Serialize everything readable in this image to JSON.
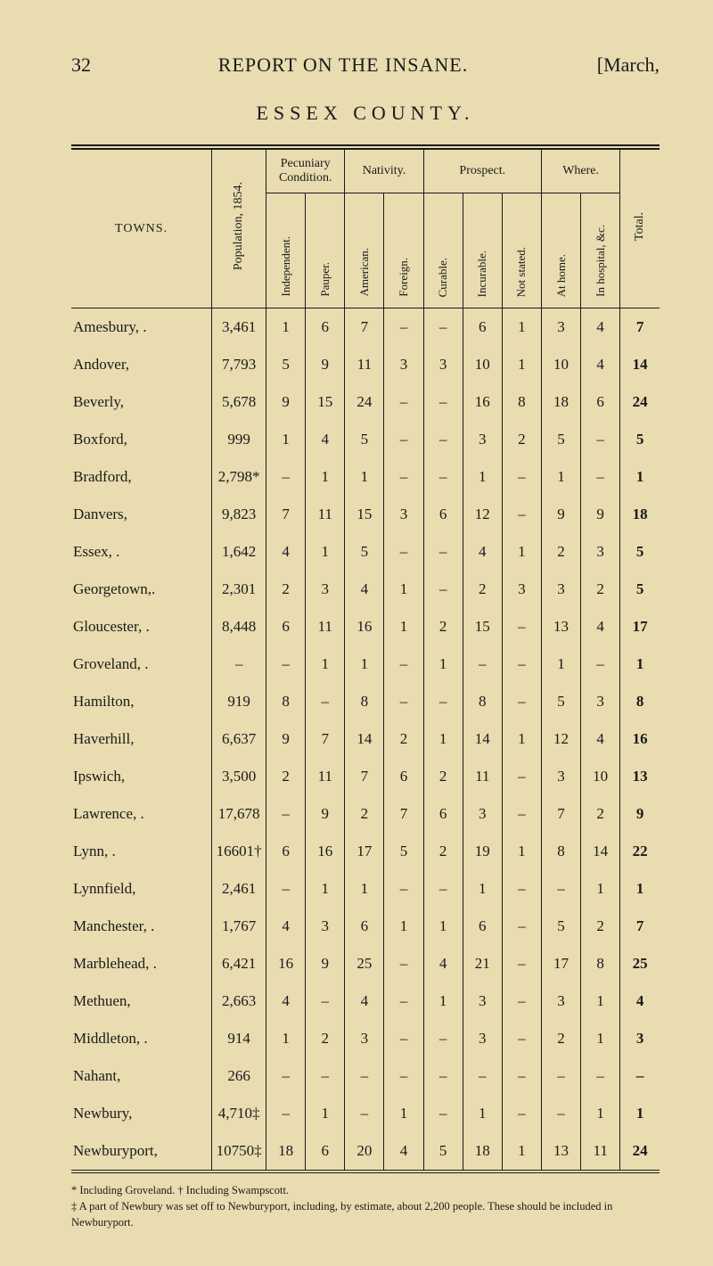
{
  "page_number": "32",
  "running_title": "REPORT ON THE INSANE.",
  "month": "[March,",
  "county_title": "ESSEX COUNTY.",
  "columns": {
    "towns_label": "TOWNS.",
    "population": "Population, 1854.",
    "group_pecuniary": "Pecuniary Condition.",
    "independent": "Independent.",
    "pauper": "Pauper.",
    "group_nativity": "Nativity.",
    "american": "American.",
    "foreign": "Foreign.",
    "group_prospect": "Prospect.",
    "curable": "Curable.",
    "incurable": "Incurable.",
    "not_stated": "Not stated.",
    "group_where": "Where.",
    "at_home": "At home.",
    "in_hospital": "In hospital, &c.",
    "total": "Total."
  },
  "rows": [
    {
      "town": "Amesbury,  .",
      "pop": "3,461",
      "ind": "1",
      "pau": "6",
      "am": "7",
      "for": "–",
      "cur": "–",
      "inc": "6",
      "ns": "1",
      "home": "3",
      "hosp": "4",
      "tot": "7"
    },
    {
      "town": "Andover,",
      "pop": "7,793",
      "ind": "5",
      "pau": "9",
      "am": "11",
      "for": "3",
      "cur": "3",
      "inc": "10",
      "ns": "1",
      "home": "10",
      "hosp": "4",
      "tot": "14"
    },
    {
      "town": "Beverly,",
      "pop": "5,678",
      "ind": "9",
      "pau": "15",
      "am": "24",
      "for": "–",
      "cur": "–",
      "inc": "16",
      "ns": "8",
      "home": "18",
      "hosp": "6",
      "tot": "24"
    },
    {
      "town": "Boxford,",
      "pop": "999",
      "ind": "1",
      "pau": "4",
      "am": "5",
      "for": "–",
      "cur": "–",
      "inc": "3",
      "ns": "2",
      "home": "5",
      "hosp": "–",
      "tot": "5"
    },
    {
      "town": "Bradford,",
      "pop": "2,798*",
      "ind": "–",
      "pau": "1",
      "am": "1",
      "for": "–",
      "cur": "–",
      "inc": "1",
      "ns": "–",
      "home": "1",
      "hosp": "–",
      "tot": "1"
    },
    {
      "town": "Danvers,",
      "pop": "9,823",
      "ind": "7",
      "pau": "11",
      "am": "15",
      "for": "3",
      "cur": "6",
      "inc": "12",
      "ns": "–",
      "home": "9",
      "hosp": "9",
      "tot": "18"
    },
    {
      "town": "Essex, .",
      "pop": "1,642",
      "ind": "4",
      "pau": "1",
      "am": "5",
      "for": "–",
      "cur": "–",
      "inc": "4",
      "ns": "1",
      "home": "2",
      "hosp": "3",
      "tot": "5"
    },
    {
      "town": "Georgetown,.",
      "pop": "2,301",
      "ind": "2",
      "pau": "3",
      "am": "4",
      "for": "1",
      "cur": "–",
      "inc": "2",
      "ns": "3",
      "home": "3",
      "hosp": "2",
      "tot": "5"
    },
    {
      "town": "Gloucester, .",
      "pop": "8,448",
      "ind": "6",
      "pau": "11",
      "am": "16",
      "for": "1",
      "cur": "2",
      "inc": "15",
      "ns": "–",
      "home": "13",
      "hosp": "4",
      "tot": "17"
    },
    {
      "town": "Groveland,  .",
      "pop": "–",
      "ind": "–",
      "pau": "1",
      "am": "1",
      "for": "–",
      "cur": "1",
      "inc": "–",
      "ns": "–",
      "home": "1",
      "hosp": "–",
      "tot": "1"
    },
    {
      "town": "Hamilton,",
      "pop": "919",
      "ind": "8",
      "pau": "–",
      "am": "8",
      "for": "–",
      "cur": "–",
      "inc": "8",
      "ns": "–",
      "home": "5",
      "hosp": "3",
      "tot": "8"
    },
    {
      "town": "Haverhill,",
      "pop": "6,637",
      "ind": "9",
      "pau": "7",
      "am": "14",
      "for": "2",
      "cur": "1",
      "inc": "14",
      "ns": "1",
      "home": "12",
      "hosp": "4",
      "tot": "16"
    },
    {
      "town": "Ipswich,",
      "pop": "3,500",
      "ind": "2",
      "pau": "11",
      "am": "7",
      "for": "6",
      "cur": "2",
      "inc": "11",
      "ns": "–",
      "home": "3",
      "hosp": "10",
      "tot": "13"
    },
    {
      "town": "Lawrence,  .",
      "pop": "17,678",
      "ind": "–",
      "pau": "9",
      "am": "2",
      "for": "7",
      "cur": "6",
      "inc": "3",
      "ns": "–",
      "home": "7",
      "hosp": "2",
      "tot": "9"
    },
    {
      "town": "Lynn, .",
      "pop": "16601†",
      "ind": "6",
      "pau": "16",
      "am": "17",
      "for": "5",
      "cur": "2",
      "inc": "19",
      "ns": "1",
      "home": "8",
      "hosp": "14",
      "tot": "22"
    },
    {
      "town": "Lynnfield,",
      "pop": "2,461",
      "ind": "–",
      "pau": "1",
      "am": "1",
      "for": "–",
      "cur": "–",
      "inc": "1",
      "ns": "–",
      "home": "–",
      "hosp": "1",
      "tot": "1"
    },
    {
      "town": "Manchester, .",
      "pop": "1,767",
      "ind": "4",
      "pau": "3",
      "am": "6",
      "for": "1",
      "cur": "1",
      "inc": "6",
      "ns": "–",
      "home": "5",
      "hosp": "2",
      "tot": "7"
    },
    {
      "town": "Marblehead, .",
      "pop": "6,421",
      "ind": "16",
      "pau": "9",
      "am": "25",
      "for": "–",
      "cur": "4",
      "inc": "21",
      "ns": "–",
      "home": "17",
      "hosp": "8",
      "tot": "25"
    },
    {
      "town": "Methuen,",
      "pop": "2,663",
      "ind": "4",
      "pau": "–",
      "am": "4",
      "for": "–",
      "cur": "1",
      "inc": "3",
      "ns": "–",
      "home": "3",
      "hosp": "1",
      "tot": "4"
    },
    {
      "town": "Middleton,  .",
      "pop": "914",
      "ind": "1",
      "pau": "2",
      "am": "3",
      "for": "–",
      "cur": "–",
      "inc": "3",
      "ns": "–",
      "home": "2",
      "hosp": "1",
      "tot": "3"
    },
    {
      "town": "Nahant,",
      "pop": "266",
      "ind": "–",
      "pau": "–",
      "am": "–",
      "for": "–",
      "cur": "–",
      "inc": "–",
      "ns": "–",
      "home": "–",
      "hosp": "–",
      "tot": "–"
    },
    {
      "town": "Newbury,",
      "pop": "4,710‡",
      "ind": "–",
      "pau": "1",
      "am": "–",
      "for": "1",
      "cur": "–",
      "inc": "1",
      "ns": "–",
      "home": "–",
      "hosp": "1",
      "tot": "1"
    },
    {
      "town": "Newburyport,",
      "pop": "10750‡",
      "ind": "18",
      "pau": "6",
      "am": "20",
      "for": "4",
      "cur": "5",
      "inc": "18",
      "ns": "1",
      "home": "13",
      "hosp": "11",
      "tot": "24"
    }
  ],
  "footnotes": {
    "line1": "* Including Groveland.   † Including Swampscott.",
    "line2": "‡ A part of Newbury was set off to Newburyport, including, by estimate, about 2,200 people.  These should be included in Newburyport."
  },
  "colwidths": {
    "town": "150",
    "pop": "58",
    "narrow": "42"
  }
}
